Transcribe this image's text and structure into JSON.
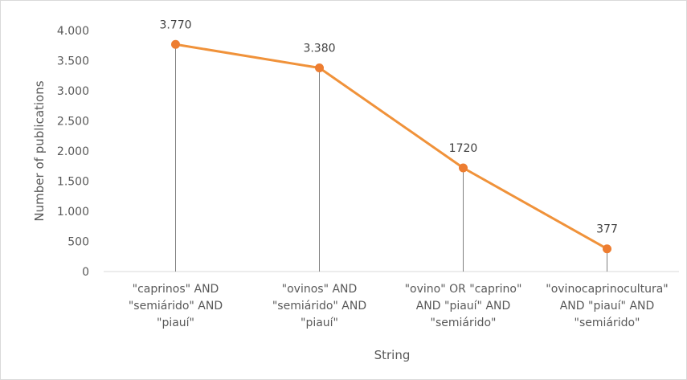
{
  "chart_data": {
    "type": "line",
    "categories": [
      [
        "\"caprinos\" AND",
        "\"semiárido\" AND",
        "\"piauí\""
      ],
      [
        "\"ovinos\" AND",
        "\"semiárido\" AND",
        "\"piauí\""
      ],
      [
        "\"ovino\" OR \"caprino\"",
        "AND \"piauí\" AND",
        "\"semiárido\""
      ],
      [
        "\"ovinocaprinocultura\"",
        "AND \"piauí\" AND",
        "\"semiárido\""
      ]
    ],
    "values": [
      3770,
      3380,
      1720,
      377
    ],
    "data_labels": [
      "3.770",
      "3.380",
      "1720",
      "377"
    ],
    "xlabel": "String",
    "ylabel": "Number of publications",
    "ylim": [
      0,
      4000
    ],
    "yticks": [
      0,
      500,
      1000,
      1500,
      2000,
      2500,
      3000,
      3500,
      4000
    ],
    "ytick_labels": [
      "0",
      "500",
      "1.000",
      "1.500",
      "2.000",
      "2.500",
      "3.000",
      "3.500",
      "4.000"
    ],
    "drop_lines": true,
    "grid": false,
    "legend": "none",
    "colors": {
      "series": "#f0923a",
      "marker": "#ed7d31",
      "drop_line": "#808080",
      "axis": "#d9d9d9"
    }
  }
}
